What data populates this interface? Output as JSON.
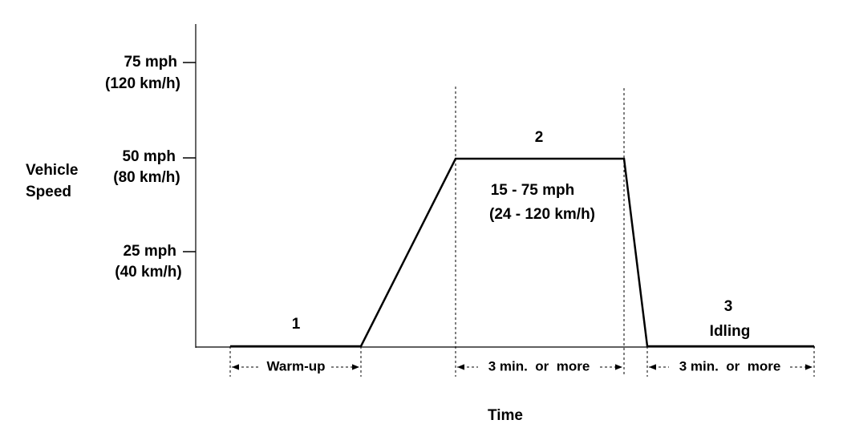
{
  "y_axis": {
    "label_lines": [
      "Vehicle",
      "Speed"
    ],
    "ticks": [
      {
        "mph": "75 mph",
        "kmh": "(120 km/h)"
      },
      {
        "mph": "50 mph",
        "kmh": "(80 km/h)"
      },
      {
        "mph": "25 mph",
        "kmh": "(40 km/h)"
      }
    ]
  },
  "x_axis": {
    "label": "Time"
  },
  "phases": [
    {
      "number": "1",
      "duration": "Warm-up"
    },
    {
      "number": "2",
      "speed_lines": [
        "15 - 75 mph",
        "(24 - 120 km/h)"
      ],
      "duration": "3 min.  or  more"
    },
    {
      "number": "3",
      "name": "Idling",
      "duration": "3 min.  or  more"
    }
  ]
}
